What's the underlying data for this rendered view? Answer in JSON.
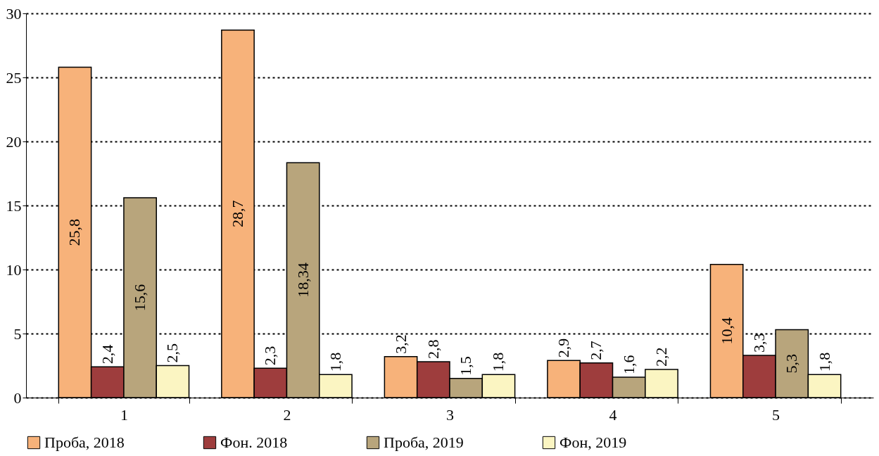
{
  "chart_data": {
    "type": "bar",
    "categories": [
      "1",
      "2",
      "3",
      "4",
      "5"
    ],
    "series": [
      {
        "name": "Проба, 2018",
        "color": "#f7b27a",
        "values": [
          25.8,
          28.7,
          3.2,
          2.9,
          10.4
        ],
        "value_labels": [
          "25,8",
          "28,7",
          "3,2",
          "2,9",
          "10,4"
        ]
      },
      {
        "name": "Фон. 2018",
        "color": "#9e3d3d",
        "values": [
          2.4,
          2.3,
          2.8,
          2.7,
          3.3
        ],
        "value_labels": [
          "2,4",
          "2,3",
          "2,8",
          "2,7",
          "3,3"
        ]
      },
      {
        "name": "Проба, 2019",
        "color": "#b8a57c",
        "values": [
          15.6,
          18.34,
          1.5,
          1.6,
          5.3
        ],
        "value_labels": [
          "15,6",
          "18,34",
          "1,5",
          "1,6",
          "5,3"
        ]
      },
      {
        "name": "Фон, 2019",
        "color": "#fbf5c2",
        "values": [
          2.5,
          1.8,
          1.8,
          2.2,
          1.8
        ],
        "value_labels": [
          "2,5",
          "1,8",
          "1,8",
          "2,2",
          "1,8"
        ]
      }
    ],
    "ylim": [
      0,
      30
    ],
    "yticks": [
      0,
      5,
      10,
      15,
      20,
      25,
      30
    ],
    "grid": "y",
    "legend": "bottom"
  }
}
